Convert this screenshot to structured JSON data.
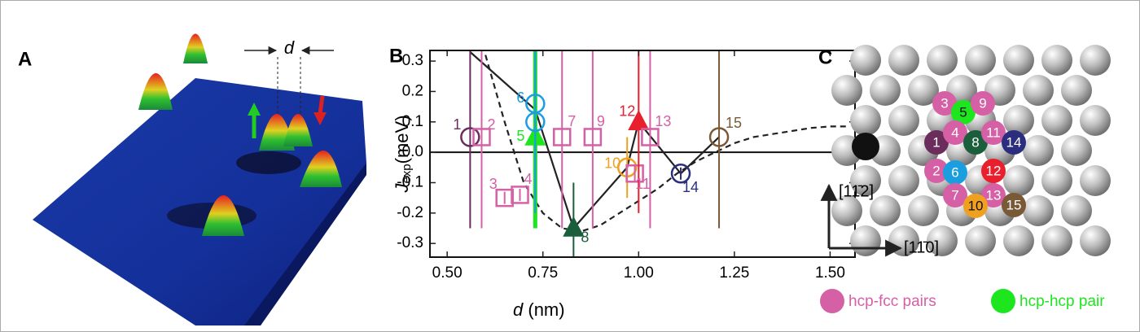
{
  "panel_a": {
    "label": "A",
    "distance_label": "d"
  },
  "chart_data": {
    "type": "scatter",
    "panel_label": "B",
    "x_label": {
      "main": "d",
      "unit": "(nm)"
    },
    "y_label": {
      "main": "J",
      "sub": "exp",
      "unit": "(meV)"
    },
    "xlim": [
      0.455,
      1.565
    ],
    "ylim": [
      -0.345,
      0.335
    ],
    "xticks": [
      {
        "value": 0.5,
        "label": "0.50"
      },
      {
        "value": 0.75,
        "label": "0.75"
      },
      {
        "value": 1.0,
        "label": "1.00"
      },
      {
        "value": 1.25,
        "label": "1.25"
      },
      {
        "value": 1.5,
        "label": "1.50"
      }
    ],
    "yticks": [
      -0.3,
      -0.2,
      -0.1,
      {
        "value": 0,
        "label": "0.0"
      },
      0.1,
      0.2,
      0.3
    ],
    "points": [
      {
        "label": "1",
        "x": 0.56,
        "y": 0.05,
        "yerr": 0.3,
        "color": "#6b2d5c",
        "marker": "circle"
      },
      {
        "label": "2",
        "x": 0.59,
        "y": 0.05,
        "yerr": 0.3,
        "color": "#d660a6",
        "marker": "square"
      },
      {
        "label": "3",
        "x": 0.65,
        "y": -0.15,
        "yerr": 0.02,
        "color": "#d660a6",
        "marker": "square"
      },
      {
        "label": "4",
        "x": 0.69,
        "y": -0.14,
        "yerr": 0.02,
        "color": "#d660a6",
        "marker": "square"
      },
      {
        "label": "5",
        "x": 0.73,
        "y": 0.05,
        "yerr": 0.3,
        "color": "#1ee61e",
        "marker": "triangle"
      },
      {
        "label": "6",
        "x": 0.73,
        "y": 0.16,
        "yerr": 0.3,
        "color": "#1a9ee0",
        "marker": "circle"
      },
      {
        "label": null,
        "x": 0.73,
        "y": 0.1,
        "yerr": 0.3,
        "color": "#1a9ee0",
        "marker": "circle"
      },
      {
        "label": "7",
        "x": 0.8,
        "y": 0.05,
        "yerr": 0.3,
        "color": "#d660a6",
        "marker": "square"
      },
      {
        "label": "8",
        "x": 0.83,
        "y": -0.25,
        "yerr": 0.15,
        "color": "#1b5e3b",
        "marker": "triangle"
      },
      {
        "label": "9",
        "x": 0.88,
        "y": 0.05,
        "yerr": 0.3,
        "color": "#d660a6",
        "marker": "square"
      },
      {
        "label": "10",
        "x": 0.97,
        "y": -0.05,
        "yerr": 0.1,
        "color": "#f0a020",
        "marker": "circle"
      },
      {
        "label": "11",
        "x": 0.99,
        "y": -0.07,
        "yerr": 0.03,
        "color": "#d660a6",
        "marker": "square"
      },
      {
        "label": "12",
        "x": 1.0,
        "y": 0.1,
        "yerr": 0.3,
        "color": "#e8202e",
        "marker": "triangle"
      },
      {
        "label": "13",
        "x": 1.03,
        "y": 0.05,
        "yerr": 0.3,
        "color": "#d660a6",
        "marker": "square"
      },
      {
        "label": "14",
        "x": 1.11,
        "y": -0.07,
        "yerr": 0.02,
        "color": "#2b2e7f",
        "marker": "circle"
      },
      {
        "label": "15",
        "x": 1.21,
        "y": 0.05,
        "yerr": 0.3,
        "color": "#7a5a36",
        "marker": "circle"
      }
    ],
    "series": [
      {
        "color": "#222222",
        "style": "solid",
        "x": [
          0.56,
          0.73,
          0.83,
          0.97,
          1.0,
          1.11,
          1.21
        ],
        "values": [
          0.33,
          0.14,
          -0.25,
          -0.05,
          0.1,
          -0.07,
          0.05
        ]
      },
      {
        "color": "#222222",
        "style": "dashed",
        "x": [
          0.6,
          0.65,
          0.7,
          0.75,
          0.8,
          0.85,
          0.9,
          0.95,
          1.0,
          1.05,
          1.1,
          1.15,
          1.2,
          1.25,
          1.3,
          1.35,
          1.4,
          1.45,
          1.5,
          1.55
        ],
        "values": [
          0.32,
          0.1,
          -0.1,
          -0.2,
          -0.25,
          -0.26,
          -0.24,
          -0.2,
          -0.16,
          -0.12,
          -0.07,
          -0.03,
          0.0,
          0.03,
          0.05,
          0.06,
          0.07,
          0.08,
          0.085,
          0.085
        ]
      }
    ]
  },
  "panel_c": {
    "label": "C",
    "sites": [
      {
        "label": "3",
        "color": "#d660a6"
      },
      {
        "label": "5",
        "color": "#1ee61e"
      },
      {
        "label": "9",
        "color": "#d660a6"
      },
      {
        "label": "1",
        "color": "#6b2d5c"
      },
      {
        "label": "4",
        "color": "#d660a6"
      },
      {
        "label": "8",
        "color": "#1b5e3b"
      },
      {
        "label": "11",
        "color": "#d660a6"
      },
      {
        "label": "14",
        "color": "#2b2e7f"
      },
      {
        "label": "2",
        "color": "#d660a6"
      },
      {
        "label": "6",
        "color": "#1a9ee0"
      },
      {
        "label": "12",
        "color": "#e8202e"
      },
      {
        "label": "7",
        "color": "#d660a6"
      },
      {
        "label": "13",
        "color": "#d660a6"
      },
      {
        "label": "10",
        "color": "#f0a020"
      },
      {
        "label": "15",
        "color": "#7a5a36"
      }
    ],
    "direction_vertical": "[11̄2]",
    "direction_horizontal": "[11̄0]",
    "legend": [
      {
        "name": "hcp-fcc pairs",
        "color": "#d660a6"
      },
      {
        "name": "hcp-hcp pair",
        "color": "#1ee61e"
      }
    ]
  }
}
